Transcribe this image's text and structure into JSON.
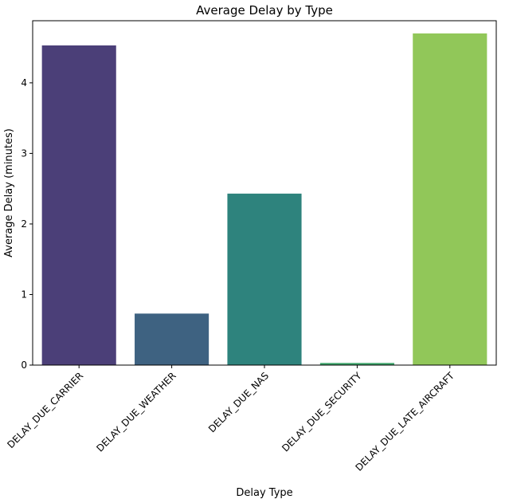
{
  "chart_data": {
    "type": "bar",
    "title": "Average Delay by Type",
    "xlabel": "Delay Type",
    "ylabel": "Average Delay (minutes)",
    "categories": [
      "DELAY_DUE_CARRIER",
      "DELAY_DUE_WEATHER",
      "DELAY_DUE_NAS",
      "DELAY_DUE_SECURITY",
      "DELAY_DUE_LATE_AIRCRAFT"
    ],
    "values": [
      4.53,
      0.73,
      2.43,
      0.03,
      4.7
    ],
    "colors": [
      "#4b3f78",
      "#3e6281",
      "#2e837d",
      "#3ca46a",
      "#91c759"
    ],
    "ylim": [
      0,
      4.88
    ],
    "yticks": [
      0,
      1,
      2,
      3,
      4
    ],
    "grid": false,
    "legend": "none"
  }
}
